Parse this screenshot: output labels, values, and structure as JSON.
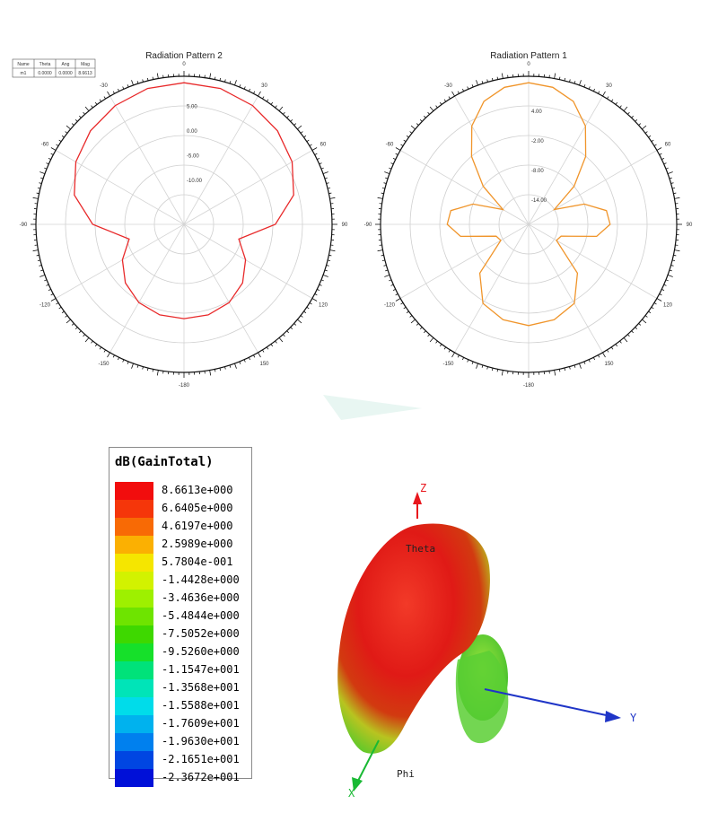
{
  "chart_data": [
    {
      "type": "polar-line",
      "title": "Radiation Pattern 2",
      "color": "#e8292a",
      "angle_ticks": [
        "0",
        "30",
        "60",
        "90",
        "120",
        "150",
        "-180",
        "-150",
        "-120",
        "-90",
        "-60",
        "-30"
      ],
      "radial_ticks": [
        "5.00",
        "0.00",
        "-5.00",
        "-10.00"
      ],
      "rlim": [
        -20,
        10
      ],
      "table": {
        "headers": [
          "Name",
          "Theta",
          "Ang",
          "Mag"
        ],
        "rows": [
          [
            "m1",
            "0.0000",
            "0.0000",
            "8.6613"
          ]
        ]
      },
      "series": [
        {
          "theta_deg": [
            0,
            15,
            30,
            45,
            60,
            75,
            90,
            105,
            120,
            135,
            150,
            165,
            180,
            195,
            210,
            225,
            240,
            255,
            270,
            285,
            300,
            315,
            330,
            345
          ],
          "r_db": [
            8.7,
            8.5,
            7.8,
            6.8,
            5.3,
            3.0,
            -1.5,
            -8.5,
            -5.6,
            -3.2,
            -1.7,
            -1.0,
            -0.9,
            -1.0,
            -1.7,
            -3.2,
            -5.6,
            -8.5,
            -1.5,
            3.0,
            5.3,
            6.8,
            7.8,
            8.5
          ]
        }
      ]
    },
    {
      "type": "polar-line",
      "title": "Radiation Pattern 1",
      "color": "#f0952b",
      "angle_ticks": [
        "0",
        "30",
        "60",
        "90",
        "120",
        "150",
        "-180",
        "-150",
        "-120",
        "-90",
        "-60",
        "-30"
      ],
      "radial_ticks": [
        "4.00",
        "-2.00",
        "-8.00",
        "-14.00"
      ],
      "rlim": [
        -20,
        10
      ],
      "series": [
        {
          "theta_deg": [
            0,
            10,
            20,
            30,
            40,
            50,
            60,
            70,
            80,
            90,
            100,
            110,
            120,
            135,
            150,
            165,
            180,
            195,
            210,
            225,
            240,
            250,
            260,
            270,
            280,
            290,
            300,
            310,
            320,
            330,
            340,
            350
          ],
          "r_db": [
            8.7,
            8.2,
            6.5,
            3.0,
            -2.0,
            -8.0,
            -14.0,
            -8.0,
            -4.0,
            -3.5,
            -6.0,
            -13.0,
            -13.5,
            -6.0,
            -1.5,
            0.0,
            0.5,
            0.0,
            -1.5,
            -6.0,
            -13.5,
            -13.0,
            -6.0,
            -3.5,
            -4.0,
            -8.0,
            -14.0,
            -8.0,
            -2.0,
            3.0,
            6.5,
            8.2
          ]
        }
      ]
    }
  ],
  "legend": {
    "title": "dB(GainTotal)",
    "entries": [
      {
        "label": "8.6613e+000",
        "color": "#f20d0d"
      },
      {
        "label": "6.6405e+000",
        "color": "#f5360a"
      },
      {
        "label": "4.6197e+000",
        "color": "#f86a05"
      },
      {
        "label": "2.5989e+000",
        "color": "#fbb002"
      },
      {
        "label": "5.7804e-001",
        "color": "#f5e600"
      },
      {
        "label": "-1.4428e+000",
        "color": "#d2f200"
      },
      {
        "label": "-3.4636e+000",
        "color": "#9ef000"
      },
      {
        "label": "-5.4844e+000",
        "color": "#6ee400"
      },
      {
        "label": "-7.5052e+000",
        "color": "#3ed800"
      },
      {
        "label": "-9.5260e+000",
        "color": "#16e02a"
      },
      {
        "label": "-1.1547e+001",
        "color": "#00e27a"
      },
      {
        "label": "-1.3568e+001",
        "color": "#00e4b8"
      },
      {
        "label": "-1.5588e+001",
        "color": "#00dcea"
      },
      {
        "label": "-1.7609e+001",
        "color": "#00b2ee"
      },
      {
        "label": "-1.9630e+001",
        "color": "#0080ee"
      },
      {
        "label": "-2.1651e+001",
        "color": "#0046e2"
      },
      {
        "label": "-2.3672e+001",
        "color": "#0010d8"
      }
    ]
  },
  "pattern_3d": {
    "axis_labels": {
      "z": "Z",
      "y": "Y",
      "x": "X",
      "theta": "Theta",
      "phi": "Phi"
    },
    "colors": {
      "z_axis": "#e8171d",
      "y_axis": "#1f35c7",
      "x_axis": "#19b934"
    }
  }
}
